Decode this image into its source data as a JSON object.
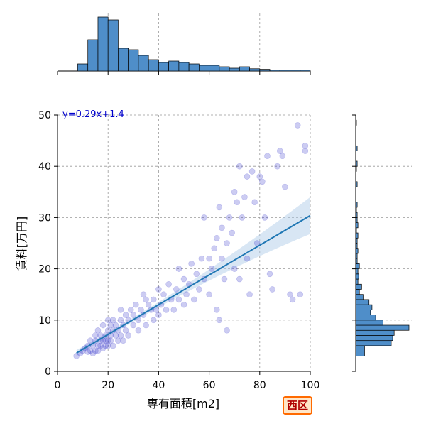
{
  "chart_data": {
    "type": "scatter",
    "xlabel": "専有面積[m2]",
    "ylabel": "賃料[万円]",
    "xlim": [
      0,
      100
    ],
    "ylim": [
      0,
      50
    ],
    "xticks": [
      0,
      20,
      40,
      60,
      80,
      100
    ],
    "yticks": [
      0,
      10,
      20,
      30,
      40,
      50
    ],
    "grid": true,
    "annotation": "y=0.29x+1.4",
    "regression": {
      "slope": 0.29,
      "intercept": 1.4,
      "x_range": [
        7.5,
        100
      ]
    },
    "region_label": "西区",
    "points": [
      [
        7.5,
        3
      ],
      [
        9,
        3.5
      ],
      [
        10,
        4
      ],
      [
        11,
        4.5
      ],
      [
        12,
        3.8
      ],
      [
        12,
        5
      ],
      [
        13,
        4
      ],
      [
        13,
        6
      ],
      [
        14,
        5
      ],
      [
        14,
        3.5
      ],
      [
        15,
        4
      ],
      [
        15,
        6
      ],
      [
        15,
        7
      ],
      [
        16,
        5
      ],
      [
        16,
        4
      ],
      [
        16,
        8
      ],
      [
        17,
        6
      ],
      [
        17,
        5
      ],
      [
        17,
        7
      ],
      [
        18,
        6
      ],
      [
        18,
        4.5
      ],
      [
        18,
        9
      ],
      [
        19,
        7
      ],
      [
        19,
        5
      ],
      [
        19,
        6
      ],
      [
        20,
        8
      ],
      [
        20,
        6
      ],
      [
        20,
        5
      ],
      [
        20,
        10
      ],
      [
        21,
        7
      ],
      [
        21,
        9
      ],
      [
        21,
        6
      ],
      [
        22,
        8
      ],
      [
        22,
        5
      ],
      [
        22,
        10
      ],
      [
        23,
        7
      ],
      [
        23,
        9
      ],
      [
        24,
        6
      ],
      [
        24,
        8
      ],
      [
        25,
        7
      ],
      [
        25,
        10
      ],
      [
        25,
        12
      ],
      [
        26,
        9
      ],
      [
        26,
        6
      ],
      [
        27,
        11
      ],
      [
        27,
        8
      ],
      [
        28,
        10
      ],
      [
        28,
        7
      ],
      [
        29,
        12
      ],
      [
        30,
        9
      ],
      [
        30,
        11
      ],
      [
        31,
        13
      ],
      [
        32,
        10
      ],
      [
        32,
        8
      ],
      [
        33,
        12
      ],
      [
        34,
        15
      ],
      [
        34,
        11
      ],
      [
        35,
        14
      ],
      [
        35,
        9
      ],
      [
        36,
        13
      ],
      [
        37,
        12
      ],
      [
        38,
        14
      ],
      [
        38,
        10
      ],
      [
        39,
        12
      ],
      [
        40,
        16
      ],
      [
        40,
        11
      ],
      [
        41,
        13
      ],
      [
        42,
        15
      ],
      [
        43,
        12
      ],
      [
        44,
        17
      ],
      [
        45,
        14
      ],
      [
        46,
        12
      ],
      [
        47,
        16
      ],
      [
        48,
        20
      ],
      [
        48,
        14
      ],
      [
        50,
        18
      ],
      [
        50,
        13
      ],
      [
        51,
        15
      ],
      [
        52,
        17
      ],
      [
        53,
        21
      ],
      [
        54,
        14
      ],
      [
        55,
        19
      ],
      [
        56,
        16
      ],
      [
        57,
        22
      ],
      [
        58,
        30
      ],
      [
        58,
        18
      ],
      [
        60,
        22
      ],
      [
        60,
        15
      ],
      [
        61,
        20
      ],
      [
        62,
        24
      ],
      [
        63,
        12
      ],
      [
        63,
        26
      ],
      [
        64,
        10
      ],
      [
        64,
        32
      ],
      [
        65,
        28
      ],
      [
        65,
        22
      ],
      [
        66,
        18
      ],
      [
        67,
        8
      ],
      [
        67,
        25
      ],
      [
        68,
        30
      ],
      [
        69,
        27
      ],
      [
        70,
        20
      ],
      [
        70,
        35
      ],
      [
        71,
        33
      ],
      [
        72,
        40
      ],
      [
        72,
        18
      ],
      [
        73,
        30
      ],
      [
        74,
        34
      ],
      [
        75,
        38
      ],
      [
        75,
        22
      ],
      [
        76,
        15
      ],
      [
        77,
        39
      ],
      [
        78,
        33
      ],
      [
        79,
        25
      ],
      [
        80,
        38
      ],
      [
        81,
        37
      ],
      [
        82,
        30
      ],
      [
        83,
        42
      ],
      [
        84,
        19
      ],
      [
        85,
        16
      ],
      [
        87,
        40
      ],
      [
        88,
        43
      ],
      [
        89,
        42
      ],
      [
        90,
        36
      ],
      [
        92,
        15
      ],
      [
        93,
        14
      ],
      [
        95,
        48
      ],
      [
        96,
        15
      ],
      [
        98,
        43
      ],
      [
        98,
        44
      ]
    ],
    "top_hist": {
      "bins": [
        [
          8,
          12,
          0.025
        ],
        [
          12,
          16,
          0.11
        ],
        [
          16,
          20,
          0.19
        ],
        [
          20,
          24,
          0.18
        ],
        [
          24,
          28,
          0.08
        ],
        [
          28,
          32,
          0.075
        ],
        [
          32,
          36,
          0.055
        ],
        [
          36,
          40,
          0.04
        ],
        [
          40,
          44,
          0.03
        ],
        [
          44,
          48,
          0.035
        ],
        [
          48,
          52,
          0.03
        ],
        [
          52,
          56,
          0.025
        ],
        [
          56,
          60,
          0.02
        ],
        [
          60,
          64,
          0.02
        ],
        [
          64,
          68,
          0.015
        ],
        [
          68,
          72,
          0.01
        ],
        [
          72,
          76,
          0.015
        ],
        [
          76,
          80,
          0.008
        ],
        [
          80,
          84,
          0.006
        ],
        [
          84,
          88,
          0.004
        ],
        [
          88,
          92,
          0.004
        ],
        [
          92,
          96,
          0.004
        ],
        [
          96,
          100,
          0.004
        ]
      ],
      "max": 0.19
    },
    "right_hist": {
      "bins": [
        [
          3,
          5,
          0.12
        ],
        [
          5,
          6,
          0.48
        ],
        [
          6,
          7,
          0.5
        ],
        [
          7,
          8,
          0.52
        ],
        [
          8,
          9,
          0.72
        ],
        [
          9,
          10,
          0.37
        ],
        [
          10,
          11,
          0.27
        ],
        [
          11,
          12,
          0.2
        ],
        [
          12,
          13,
          0.22
        ],
        [
          13,
          14,
          0.18
        ],
        [
          14,
          15,
          0.1
        ],
        [
          15,
          16,
          0.05
        ],
        [
          16,
          17,
          0.08
        ],
        [
          17,
          18,
          0.03
        ],
        [
          18,
          19,
          0.04
        ],
        [
          19,
          20,
          0.03
        ],
        [
          20,
          21,
          0.05
        ],
        [
          21,
          22,
          0.02
        ],
        [
          22,
          23,
          0.02
        ],
        [
          23,
          24,
          0.03
        ],
        [
          24,
          25,
          0.02
        ],
        [
          25,
          26,
          0.02
        ],
        [
          26,
          27,
          0.03
        ],
        [
          27,
          28,
          0.01
        ],
        [
          28,
          29,
          0.03
        ],
        [
          29,
          30,
          0.02
        ],
        [
          30,
          31,
          0.02
        ],
        [
          31,
          32,
          0.01
        ],
        [
          32,
          33,
          0.02
        ],
        [
          36,
          37,
          0.02
        ],
        [
          39,
          40,
          0.01
        ],
        [
          40,
          41,
          0.02
        ],
        [
          43,
          44,
          0.02
        ],
        [
          48,
          49,
          0.01
        ]
      ],
      "max": 0.72
    },
    "colors": {
      "point": "#3333cc",
      "line": "#1f77b4",
      "band": "#a9c7e6",
      "hist": "#4f8ec9",
      "grid": "#999999",
      "eq_text": "#0000cc"
    }
  }
}
